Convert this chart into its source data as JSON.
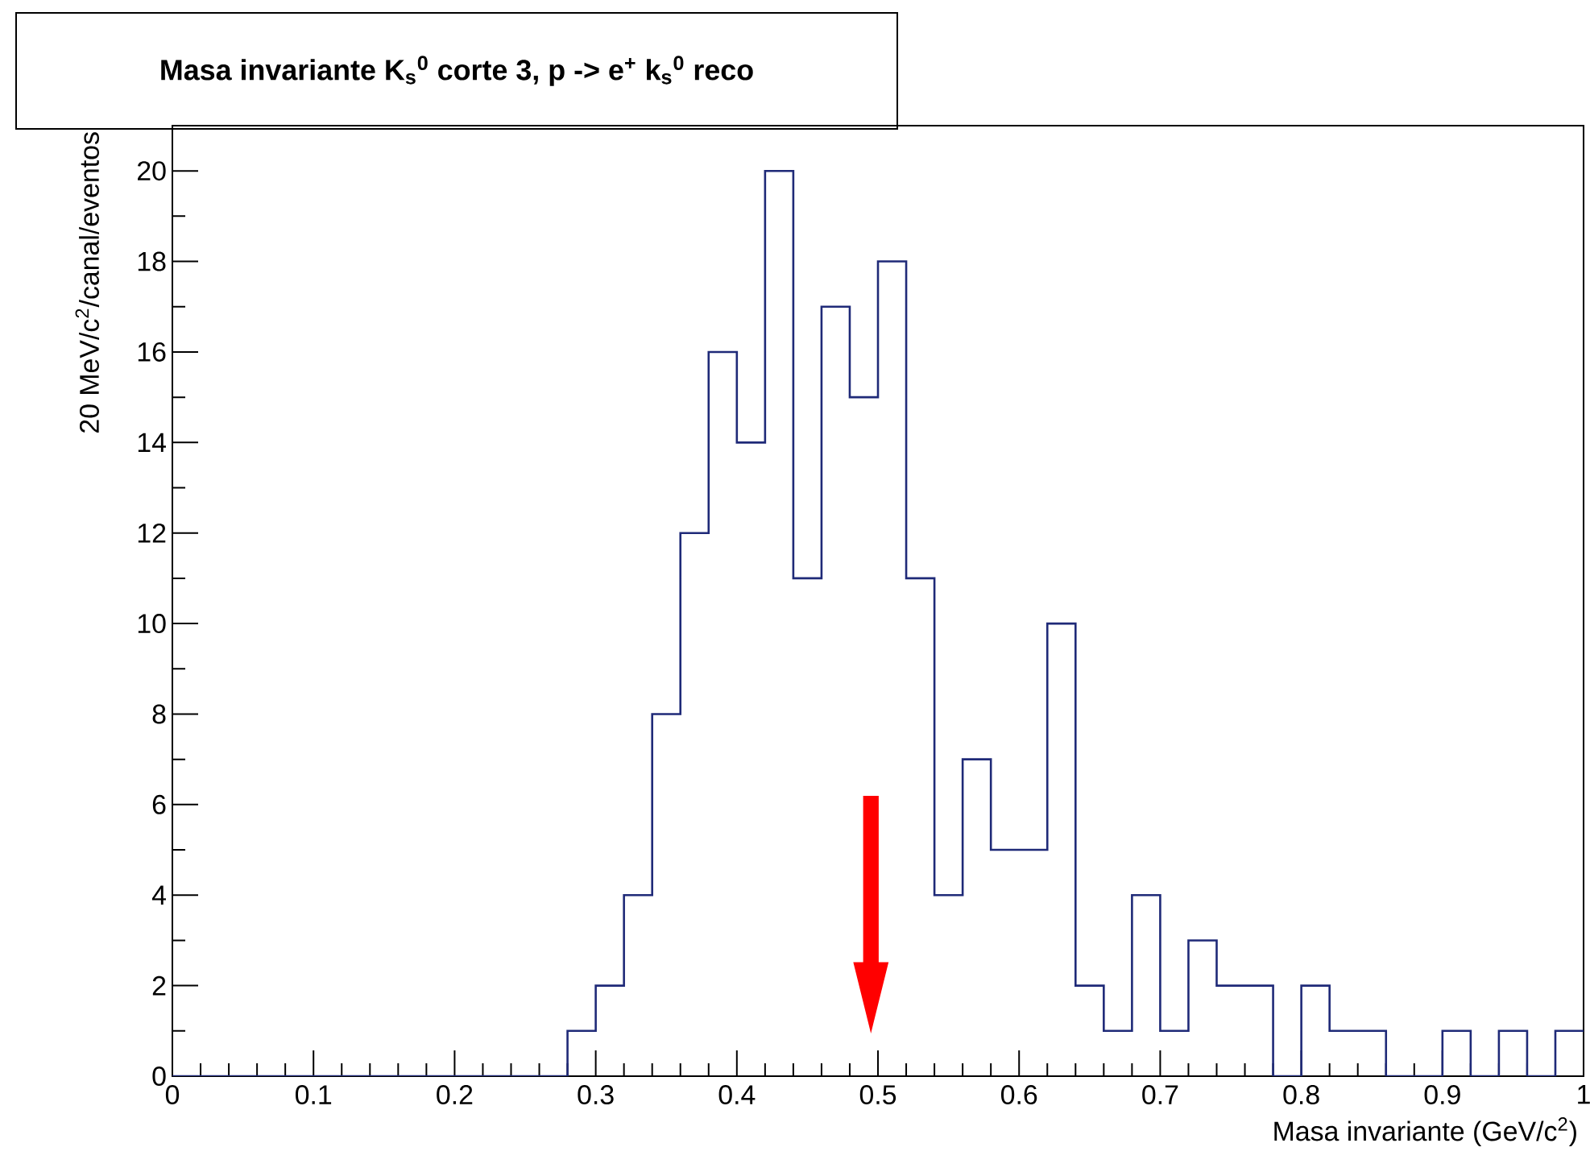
{
  "chart_data": {
    "type": "histogram",
    "title": "Masa invariante K$_{s}$$^{0}$ corte 3, p -> e$^{+}$   k$_{s}$$^{0}$ reco",
    "xlabel": "Masa invariante (GeV/c$^{2}$)",
    "ylabel": "20 MeV/c$^{2}$/canal/eventos",
    "bins": [
      0,
      0.02,
      0.04,
      0.06,
      0.08,
      0.1,
      0.12,
      0.14,
      0.16,
      0.18,
      0.2,
      0.22,
      0.24,
      0.26,
      0.28,
      0.3,
      0.32,
      0.34,
      0.36,
      0.38,
      0.4,
      0.42,
      0.44,
      0.46,
      0.48,
      0.5,
      0.52,
      0.54,
      0.56,
      0.58,
      0.6,
      0.62,
      0.64,
      0.66,
      0.68,
      0.7,
      0.72,
      0.74,
      0.76,
      0.78,
      0.8,
      0.82,
      0.84,
      0.86,
      0.88,
      0.9,
      0.92,
      0.94,
      0.96,
      0.98,
      1
    ],
    "values": [
      0,
      0,
      0,
      0,
      0,
      0,
      0,
      0,
      0,
      0,
      0,
      0,
      0,
      0,
      1,
      2,
      4,
      8,
      12,
      16,
      14,
      20,
      11,
      17,
      15,
      18,
      11,
      4,
      7,
      5,
      5,
      10,
      2,
      1,
      4,
      1,
      3,
      2,
      2,
      0,
      2,
      1,
      1,
      0,
      0,
      1,
      0,
      1,
      0,
      1
    ],
    "color": "#1f2a78",
    "xlim": [
      0,
      1
    ],
    "ylim": [
      0,
      21
    ],
    "xticks": [
      0,
      0.1,
      0.2,
      0.3,
      0.4,
      0.5,
      0.6,
      0.7,
      0.8,
      0.9,
      1
    ],
    "yticks": [
      0,
      2,
      4,
      6,
      8,
      10,
      12,
      14,
      16,
      18,
      20
    ]
  }
}
